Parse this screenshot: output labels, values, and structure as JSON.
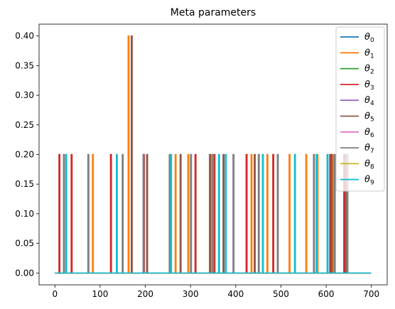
{
  "chart_data": {
    "type": "line",
    "title": "Meta parameters",
    "xlabel": "",
    "ylabel": "",
    "xlim": [
      -35,
      735
    ],
    "ylim": [
      -0.02,
      0.42
    ],
    "xticks": [
      0,
      100,
      200,
      300,
      400,
      500,
      600,
      700
    ],
    "yticks": [
      0.0,
      0.05,
      0.1,
      0.15,
      0.2,
      0.25,
      0.3,
      0.35,
      0.4
    ],
    "ytick_labels": [
      "0.00",
      "0.05",
      "0.10",
      "0.15",
      "0.20",
      "0.25",
      "0.30",
      "0.35",
      "0.40"
    ],
    "x_range": [
      0,
      699
    ],
    "grid": false,
    "legend_position": "top-right",
    "series": [
      {
        "name": "θ",
        "sub": "0",
        "color": "#1f77b4",
        "spikes": []
      },
      {
        "name": "θ",
        "sub": "1",
        "color": "#ff7f0e",
        "spikes": [
          [
            84,
            0.2
          ],
          [
            163,
            0.4
          ],
          [
            267,
            0.2
          ],
          [
            295,
            0.2
          ],
          [
            347,
            0.2
          ],
          [
            435,
            0.2
          ],
          [
            470,
            0.2
          ],
          [
            519,
            0.2
          ],
          [
            556,
            0.2
          ],
          [
            581,
            0.2
          ],
          [
            615,
            0.2
          ]
        ]
      },
      {
        "name": "θ",
        "sub": "2",
        "color": "#2ca02c",
        "spikes": []
      },
      {
        "name": "θ",
        "sub": "3",
        "color": "#d62728",
        "spikes": [
          [
            10,
            0.2
          ],
          [
            37,
            0.2
          ],
          [
            124,
            0.2
          ],
          [
            197,
            0.2
          ],
          [
            311,
            0.2
          ],
          [
            353,
            0.2
          ],
          [
            424,
            0.2
          ],
          [
            483,
            0.2
          ],
          [
            609,
            0.2
          ],
          [
            640,
            0.2
          ]
        ]
      },
      {
        "name": "θ",
        "sub": "4",
        "color": "#9467bd",
        "spikes": []
      },
      {
        "name": "θ",
        "sub": "5",
        "color": "#8c564b",
        "spikes": [
          [
            170,
            0.4
          ],
          [
            204,
            0.2
          ],
          [
            278,
            0.2
          ],
          [
            343,
            0.2
          ],
          [
            373,
            0.2
          ],
          [
            442,
            0.2
          ],
          [
            612,
            0.2
          ],
          [
            644,
            0.2
          ]
        ]
      },
      {
        "name": "θ",
        "sub": "6",
        "color": "#e377c2",
        "spikes": []
      },
      {
        "name": "θ",
        "sub": "7",
        "color": "#7f7f7f",
        "spikes": [
          [
            20,
            0.2
          ],
          [
            74,
            0.2
          ],
          [
            150,
            0.2
          ],
          [
            196,
            0.2
          ],
          [
            254,
            0.2
          ],
          [
            301,
            0.2
          ],
          [
            350,
            0.2
          ],
          [
            395,
            0.2
          ],
          [
            451,
            0.2
          ],
          [
            493,
            0.2
          ],
          [
            573,
            0.2
          ],
          [
            619,
            0.2
          ],
          [
            647,
            0.2
          ]
        ]
      },
      {
        "name": "θ",
        "sub": "8",
        "color": "#bcbd22",
        "spikes": []
      },
      {
        "name": "θ",
        "sub": "9",
        "color": "#17becf",
        "spikes": [
          [
            25,
            0.2
          ],
          [
            137,
            0.2
          ],
          [
            257,
            0.2
          ],
          [
            363,
            0.2
          ],
          [
            378,
            0.2
          ],
          [
            460,
            0.2
          ],
          [
            531,
            0.2
          ],
          [
            579,
            0.2
          ],
          [
            603,
            0.2
          ]
        ]
      }
    ]
  }
}
